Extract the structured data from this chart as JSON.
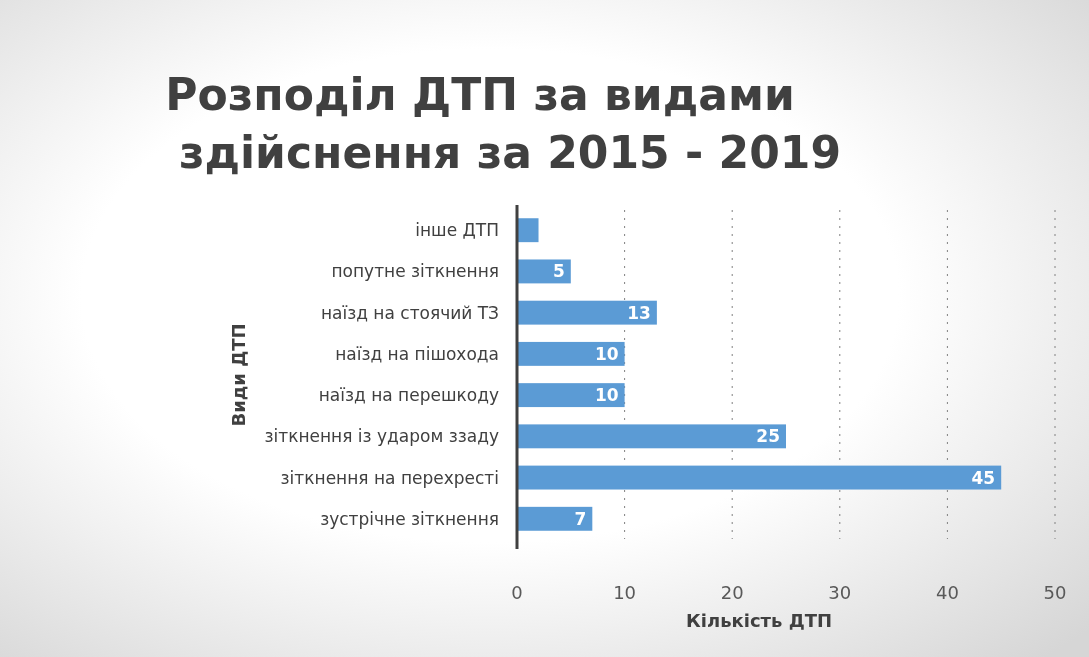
{
  "chart_data": {
    "type": "bar",
    "orientation": "horizontal",
    "title": "Розподіл ДТП за видами здійснення за 2015 - 2019",
    "xlabel": "Кількість ДТП",
    "ylabel": "Види ДТП",
    "categories": [
      "інше ДТП",
      "попутне зіткнення",
      "наїзд на стоячий ТЗ",
      "наїзд на пішохода",
      "наїзд на перешкоду",
      "зіткнення із ударом ззаду",
      "зіткнення на перехресті",
      "зустрічне зіткнення"
    ],
    "values": [
      2,
      5,
      13,
      10,
      10,
      25,
      45,
      7
    ],
    "value_labels": [
      null,
      "5",
      "13",
      "10",
      "10",
      "25",
      "45",
      "7"
    ],
    "color": "#5b9bd5",
    "xlim": [
      0,
      50
    ],
    "xticks": [
      0,
      10,
      20,
      30,
      40,
      50
    ],
    "grid": "x"
  }
}
